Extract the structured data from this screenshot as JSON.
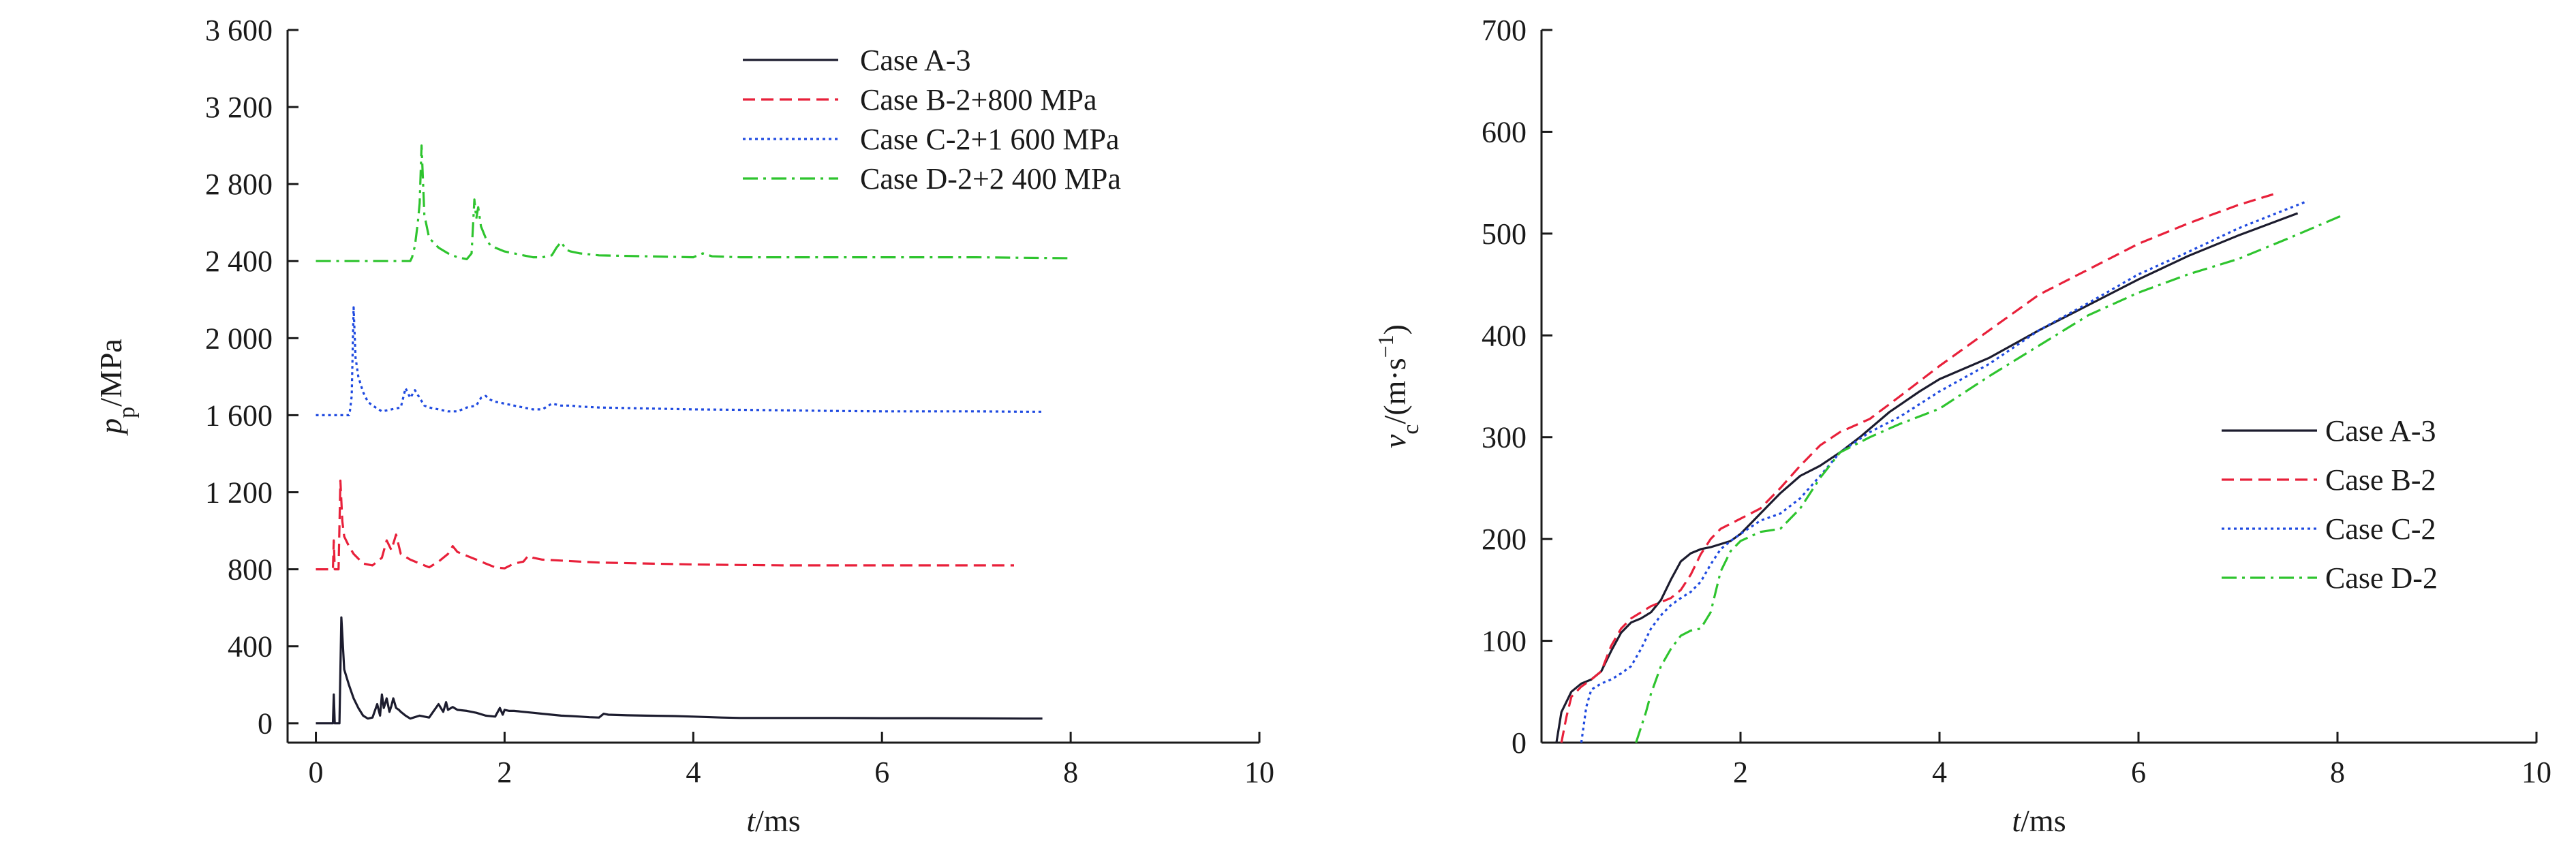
{
  "chart_data": [
    {
      "type": "line",
      "xlabel": "t/ms",
      "xlabel_var": "t",
      "xlabel_unit": "/ms",
      "ylabel": "p_p/MPa",
      "ylabel_var": "p",
      "ylabel_sub": "p",
      "ylabel_unit": "/MPa",
      "xlim": [
        -0.3,
        10
      ],
      "ylim": [
        -100,
        3600
      ],
      "xticks": [
        0,
        2,
        4,
        6,
        8,
        10
      ],
      "xtick_labels": [
        "0",
        "2",
        "4",
        "6",
        "8",
        "10"
      ],
      "yticks": [
        0,
        400,
        800,
        1200,
        1600,
        2000,
        2400,
        2800,
        3200,
        3600
      ],
      "ytick_labels": [
        "0",
        "400",
        "800",
        "1 200",
        "1 600",
        "2 000",
        "2 400",
        "2 800",
        "3 200",
        "3 600"
      ],
      "legend_position": "top-right",
      "series": [
        {
          "name": "Case A-3",
          "color": "#1c1c2e",
          "dash": "solid",
          "x": [
            0,
            0.18,
            0.19,
            0.2,
            0.25,
            0.27,
            0.3,
            0.35,
            0.4,
            0.45,
            0.5,
            0.55,
            0.6,
            0.65,
            0.68,
            0.7,
            0.72,
            0.75,
            0.78,
            0.8,
            0.82,
            0.85,
            0.88,
            0.9,
            0.95,
            1.0,
            1.1,
            1.2,
            1.3,
            1.35,
            1.38,
            1.4,
            1.45,
            1.5,
            1.6,
            1.7,
            1.8,
            1.9,
            1.95,
            1.98,
            2.0,
            2.05,
            2.1,
            2.2,
            2.3,
            2.4,
            2.5,
            2.6,
            2.7,
            2.8,
            2.9,
            3.0,
            3.05,
            3.1,
            3.3,
            3.5,
            3.8,
            4.0,
            4.3,
            4.5,
            5.0,
            5.5,
            6.0,
            6.5,
            7.0,
            7.5,
            7.7
          ],
          "y": [
            0,
            0,
            150,
            0,
            0,
            550,
            280,
            200,
            130,
            80,
            40,
            25,
            30,
            100,
            40,
            150,
            80,
            130,
            60,
            90,
            130,
            80,
            70,
            60,
            40,
            25,
            40,
            30,
            100,
            60,
            110,
            70,
            85,
            70,
            65,
            55,
            40,
            35,
            80,
            45,
            70,
            65,
            65,
            60,
            55,
            50,
            45,
            40,
            38,
            35,
            32,
            30,
            50,
            45,
            42,
            40,
            38,
            35,
            30,
            28,
            28,
            28,
            27,
            27,
            26,
            25,
            25
          ]
        },
        {
          "name": "Case B-2+800 MPa",
          "color": "#e8203a",
          "dash": "dashed",
          "x": [
            0,
            0.18,
            0.19,
            0.2,
            0.24,
            0.26,
            0.28,
            0.3,
            0.35,
            0.4,
            0.5,
            0.6,
            0.7,
            0.75,
            0.8,
            0.85,
            0.9,
            1.0,
            1.1,
            1.2,
            1.3,
            1.4,
            1.45,
            1.5,
            1.6,
            1.7,
            1.8,
            1.9,
            2.0,
            2.1,
            2.2,
            2.25,
            2.3,
            2.4,
            2.6,
            2.8,
            3.0,
            3.5,
            4.0,
            4.5,
            5.0,
            6.0,
            7.0,
            7.4
          ],
          "y": [
            800,
            800,
            950,
            800,
            800,
            1260,
            1050,
            970,
            920,
            880,
            830,
            820,
            860,
            950,
            900,
            980,
            880,
            850,
            830,
            810,
            840,
            880,
            920,
            890,
            870,
            850,
            830,
            810,
            805,
            830,
            840,
            870,
            860,
            850,
            845,
            840,
            835,
            830,
            825,
            822,
            820,
            820,
            820,
            820
          ]
        },
        {
          "name": "Case C-2+1 600 MPa",
          "color": "#1f4ae0",
          "dash": "dotted",
          "x": [
            0,
            0.35,
            0.36,
            0.38,
            0.4,
            0.42,
            0.45,
            0.5,
            0.55,
            0.6,
            0.7,
            0.8,
            0.9,
            0.95,
            1.0,
            1.05,
            1.1,
            1.15,
            1.2,
            1.3,
            1.4,
            1.5,
            1.6,
            1.7,
            1.75,
            1.8,
            1.85,
            1.9,
            2.0,
            2.1,
            2.2,
            2.3,
            2.4,
            2.5,
            2.6,
            2.7,
            2.8,
            3.0,
            3.5,
            4.0,
            4.5,
            5.0,
            5.5,
            6.0,
            6.5,
            7.0,
            7.5,
            7.7
          ],
          "y": [
            1600,
            1600,
            1620,
            1700,
            2160,
            1900,
            1800,
            1720,
            1670,
            1650,
            1620,
            1630,
            1640,
            1740,
            1690,
            1730,
            1690,
            1650,
            1640,
            1630,
            1620,
            1620,
            1640,
            1650,
            1690,
            1700,
            1680,
            1670,
            1660,
            1650,
            1640,
            1630,
            1630,
            1660,
            1650,
            1650,
            1645,
            1640,
            1635,
            1630,
            1628,
            1625,
            1622,
            1620,
            1620,
            1620,
            1618,
            1618
          ]
        },
        {
          "name": "Case D-2+2 400 MPa",
          "color": "#2ec42e",
          "dash": "dashdot",
          "x": [
            0,
            1.0,
            1.02,
            1.05,
            1.08,
            1.1,
            1.12,
            1.15,
            1.2,
            1.3,
            1.4,
            1.5,
            1.6,
            1.65,
            1.68,
            1.7,
            1.72,
            1.75,
            1.8,
            1.85,
            1.9,
            2.0,
            2.1,
            2.2,
            2.3,
            2.4,
            2.5,
            2.55,
            2.6,
            2.65,
            2.7,
            2.8,
            3.0,
            3.5,
            4.0,
            4.1,
            4.2,
            4.5,
            5.0,
            6.0,
            7.0,
            8.0
          ],
          "y": [
            2400,
            2400,
            2420,
            2480,
            2600,
            2700,
            3000,
            2640,
            2520,
            2470,
            2440,
            2420,
            2410,
            2440,
            2720,
            2620,
            2680,
            2580,
            2520,
            2480,
            2470,
            2450,
            2440,
            2430,
            2420,
            2420,
            2430,
            2470,
            2500,
            2460,
            2450,
            2440,
            2430,
            2425,
            2420,
            2440,
            2425,
            2420,
            2420,
            2420,
            2420,
            2415
          ]
        }
      ]
    },
    {
      "type": "line",
      "xlabel": "t/ms",
      "xlabel_var": "t",
      "xlabel_unit": "/ms",
      "ylabel": "v_c/(m·s^-1)",
      "ylabel_var": "v",
      "ylabel_sub": "c",
      "ylabel_unit": "/(m·s",
      "ylabel_sup": "−1",
      "ylabel_close": ")",
      "xlim": [
        0,
        10
      ],
      "ylim": [
        0,
        700
      ],
      "xticks": [
        2,
        4,
        6,
        8,
        10
      ],
      "xtick_labels": [
        "2",
        "4",
        "6",
        "8",
        "10"
      ],
      "yticks": [
        0,
        100,
        200,
        300,
        400,
        500,
        600,
        700
      ],
      "ytick_labels": [
        "0",
        "100",
        "200",
        "300",
        "400",
        "500",
        "600",
        "700"
      ],
      "legend_position": "center-right",
      "series": [
        {
          "name": "Case A-3",
          "color": "#1c1c2e",
          "dash": "solid",
          "x": [
            0.15,
            0.2,
            0.3,
            0.4,
            0.5,
            0.6,
            0.7,
            0.8,
            0.9,
            1.0,
            1.1,
            1.2,
            1.3,
            1.4,
            1.5,
            1.6,
            1.7,
            1.8,
            1.9,
            2.0,
            2.2,
            2.4,
            2.6,
            2.8,
            3.0,
            3.2,
            3.5,
            3.8,
            4.0,
            4.5,
            5.0,
            5.5,
            6.0,
            6.5,
            7.0,
            7.6
          ],
          "y": [
            0,
            30,
            50,
            58,
            62,
            70,
            90,
            108,
            118,
            122,
            128,
            140,
            160,
            178,
            186,
            190,
            192,
            195,
            198,
            205,
            225,
            245,
            262,
            272,
            285,
            300,
            325,
            345,
            357,
            378,
            405,
            430,
            455,
            478,
            498,
            520
          ]
        },
        {
          "name": "Case B-2",
          "color": "#e8203a",
          "dash": "dashed",
          "x": [
            0.2,
            0.25,
            0.3,
            0.4,
            0.5,
            0.6,
            0.7,
            0.8,
            0.9,
            1.0,
            1.1,
            1.2,
            1.3,
            1.4,
            1.5,
            1.6,
            1.7,
            1.8,
            1.9,
            2.0,
            2.2,
            2.4,
            2.6,
            2.8,
            3.0,
            3.3,
            3.6,
            4.0,
            4.5,
            5.0,
            5.5,
            6.0,
            6.5,
            7.0,
            7.4
          ],
          "y": [
            0,
            25,
            45,
            55,
            62,
            70,
            95,
            112,
            122,
            128,
            134,
            138,
            142,
            150,
            165,
            185,
            200,
            210,
            215,
            220,
            230,
            250,
            272,
            292,
            305,
            318,
            340,
            370,
            405,
            440,
            465,
            490,
            510,
            528,
            540
          ]
        },
        {
          "name": "Case C-2",
          "color": "#1f4ae0",
          "dash": "dotted",
          "x": [
            0.4,
            0.45,
            0.5,
            0.6,
            0.7,
            0.8,
            0.9,
            1.0,
            1.1,
            1.2,
            1.3,
            1.4,
            1.5,
            1.6,
            1.7,
            1.8,
            1.9,
            2.0,
            2.2,
            2.4,
            2.6,
            2.8,
            3.0,
            3.3,
            3.6,
            4.0,
            4.5,
            5.0,
            5.5,
            6.0,
            6.5,
            7.0,
            7.7
          ],
          "y": [
            0,
            35,
            52,
            58,
            62,
            68,
            75,
            92,
            112,
            125,
            135,
            142,
            148,
            158,
            175,
            190,
            198,
            205,
            218,
            225,
            240,
            262,
            285,
            305,
            320,
            345,
            372,
            405,
            432,
            460,
            482,
            505,
            532
          ]
        },
        {
          "name": "Case D-2",
          "color": "#2ec42e",
          "dash": "dashdot",
          "x": [
            0.95,
            1.0,
            1.05,
            1.1,
            1.2,
            1.3,
            1.4,
            1.5,
            1.6,
            1.7,
            1.8,
            1.9,
            2.0,
            2.2,
            2.4,
            2.6,
            2.8,
            3.0,
            3.3,
            3.6,
            4.0,
            4.5,
            5.0,
            5.5,
            6.0,
            6.5,
            7.0,
            7.5,
            8.05
          ],
          "y": [
            0,
            15,
            30,
            48,
            75,
            92,
            105,
            110,
            112,
            128,
            168,
            188,
            198,
            207,
            210,
            230,
            260,
            285,
            300,
            313,
            328,
            360,
            390,
            420,
            442,
            460,
            475,
            495,
            518
          ]
        }
      ]
    }
  ]
}
